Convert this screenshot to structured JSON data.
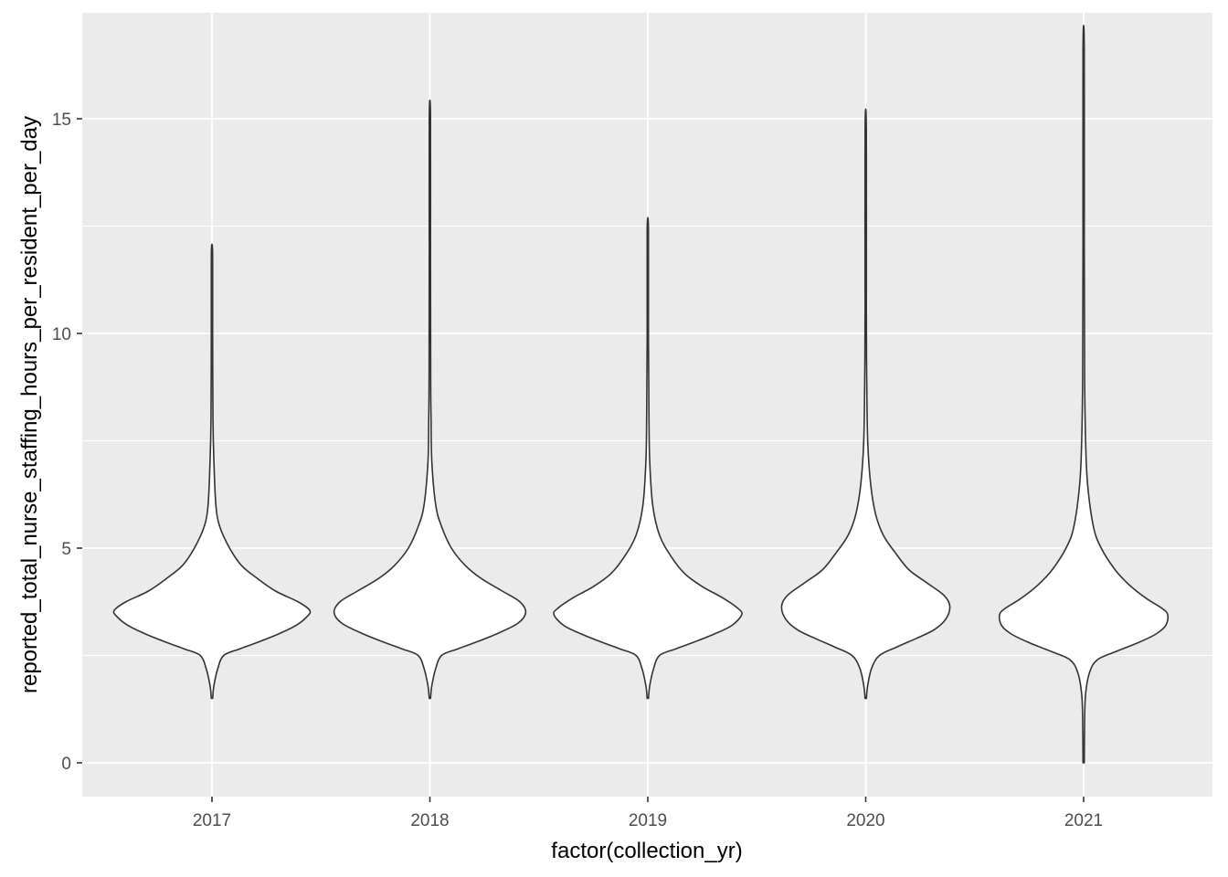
{
  "chart_data": {
    "type": "violin",
    "xlabel": "factor(collection_yr)",
    "ylabel": "reported_total_nurse_staffing_hours_per_resident_per_day",
    "categories": [
      "2017",
      "2018",
      "2019",
      "2020",
      "2021"
    ],
    "y_ticks": [
      0,
      5,
      10,
      15
    ],
    "y_tick_labels": [
      "0",
      "5",
      "10",
      "15"
    ],
    "ylim": [
      -0.75,
      17.5
    ],
    "grid": true,
    "legend": "none",
    "fill_color": "#ffffff",
    "outline_color": "#333333",
    "panel_background": "#ebebeb",
    "series": [
      {
        "category": "2017",
        "min": 1.5,
        "max": 11.85,
        "profile": [
          [
            1.5,
            0.0
          ],
          [
            1.8,
            0.02
          ],
          [
            2.2,
            0.06
          ],
          [
            2.5,
            0.12
          ],
          [
            2.65,
            0.28
          ],
          [
            2.8,
            0.46
          ],
          [
            3.0,
            0.68
          ],
          [
            3.2,
            0.86
          ],
          [
            3.4,
            0.97
          ],
          [
            3.55,
            1.0
          ],
          [
            3.75,
            0.88
          ],
          [
            4.0,
            0.65
          ],
          [
            4.3,
            0.46
          ],
          [
            4.6,
            0.3
          ],
          [
            5.0,
            0.18
          ],
          [
            5.5,
            0.08
          ],
          [
            6.0,
            0.04
          ],
          [
            7.0,
            0.02
          ],
          [
            8.0,
            0.01
          ],
          [
            10.0,
            0.006
          ],
          [
            11.85,
            0.0
          ]
        ]
      },
      {
        "category": "2018",
        "min": 1.5,
        "max": 15.05,
        "profile": [
          [
            1.5,
            0.0
          ],
          [
            1.8,
            0.02
          ],
          [
            2.2,
            0.06
          ],
          [
            2.5,
            0.12
          ],
          [
            2.65,
            0.28
          ],
          [
            2.8,
            0.46
          ],
          [
            3.0,
            0.68
          ],
          [
            3.25,
            0.9
          ],
          [
            3.5,
            0.98
          ],
          [
            3.75,
            0.92
          ],
          [
            4.0,
            0.74
          ],
          [
            4.3,
            0.52
          ],
          [
            4.6,
            0.36
          ],
          [
            5.0,
            0.22
          ],
          [
            5.5,
            0.12
          ],
          [
            6.0,
            0.06
          ],
          [
            7.0,
            0.02
          ],
          [
            8.0,
            0.012
          ],
          [
            9.0,
            0.008
          ],
          [
            12.0,
            0.004
          ],
          [
            15.05,
            0.0
          ]
        ]
      },
      {
        "category": "2019",
        "min": 1.5,
        "max": 12.4,
        "profile": [
          [
            1.5,
            0.0
          ],
          [
            1.8,
            0.02
          ],
          [
            2.2,
            0.06
          ],
          [
            2.5,
            0.12
          ],
          [
            2.65,
            0.28
          ],
          [
            2.8,
            0.46
          ],
          [
            3.0,
            0.68
          ],
          [
            3.2,
            0.86
          ],
          [
            3.45,
            0.96
          ],
          [
            3.6,
            0.92
          ],
          [
            3.85,
            0.76
          ],
          [
            4.1,
            0.56
          ],
          [
            4.4,
            0.38
          ],
          [
            4.8,
            0.24
          ],
          [
            5.3,
            0.12
          ],
          [
            6.0,
            0.05
          ],
          [
            7.0,
            0.02
          ],
          [
            8.0,
            0.012
          ],
          [
            10.0,
            0.006
          ],
          [
            12.4,
            0.0
          ]
        ]
      },
      {
        "category": "2020",
        "min": 1.5,
        "max": 14.7,
        "profile": [
          [
            1.5,
            0.0
          ],
          [
            1.8,
            0.02
          ],
          [
            2.2,
            0.06
          ],
          [
            2.5,
            0.14
          ],
          [
            2.7,
            0.32
          ],
          [
            2.9,
            0.52
          ],
          [
            3.1,
            0.7
          ],
          [
            3.35,
            0.82
          ],
          [
            3.65,
            0.86
          ],
          [
            3.9,
            0.8
          ],
          [
            4.2,
            0.62
          ],
          [
            4.5,
            0.44
          ],
          [
            4.9,
            0.3
          ],
          [
            5.3,
            0.18
          ],
          [
            5.8,
            0.1
          ],
          [
            6.5,
            0.05
          ],
          [
            7.5,
            0.02
          ],
          [
            9.0,
            0.01
          ],
          [
            10.5,
            0.006
          ],
          [
            14.7,
            0.0
          ]
        ]
      },
      {
        "category": "2021",
        "min": 0.0,
        "max": 16.6,
        "profile": [
          [
            0.0,
            0.0
          ],
          [
            1.0,
            0.01
          ],
          [
            1.6,
            0.02
          ],
          [
            2.1,
            0.06
          ],
          [
            2.4,
            0.14
          ],
          [
            2.6,
            0.34
          ],
          [
            2.8,
            0.56
          ],
          [
            3.0,
            0.74
          ],
          [
            3.2,
            0.84
          ],
          [
            3.45,
            0.86
          ],
          [
            3.6,
            0.8
          ],
          [
            3.8,
            0.66
          ],
          [
            4.0,
            0.54
          ],
          [
            4.2,
            0.44
          ],
          [
            4.5,
            0.32
          ],
          [
            5.0,
            0.18
          ],
          [
            5.5,
            0.1
          ],
          [
            6.5,
            0.04
          ],
          [
            7.5,
            0.02
          ],
          [
            9.0,
            0.01
          ],
          [
            12.0,
            0.004
          ],
          [
            16.6,
            0.0
          ]
        ]
      }
    ]
  }
}
